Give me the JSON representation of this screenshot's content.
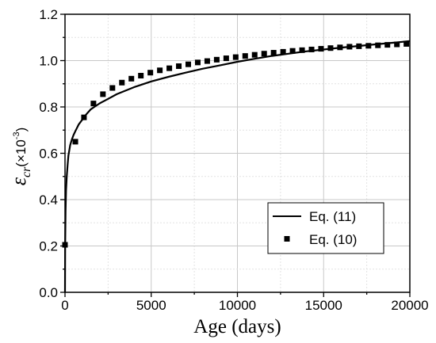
{
  "chart_data": {
    "type": "line",
    "xlabel": "Age (days)",
    "ylabel": {
      "symbol": "ε",
      "subscript": "cr",
      "unit_open": "(×10",
      "unit_exp": "-3",
      "unit_close": ")"
    },
    "xlim": [
      0,
      20000
    ],
    "ylim": [
      0.0,
      1.2
    ],
    "xticks": [
      0,
      5000,
      10000,
      15000,
      20000
    ],
    "yticks": [
      0.0,
      0.2,
      0.4,
      0.6,
      0.8,
      1.0,
      1.2
    ],
    "xtick_labels": [
      "0",
      "5000",
      "10000",
      "15000",
      "20000"
    ],
    "ytick_labels": [
      "0.0",
      "0.2",
      "0.4",
      "0.6",
      "0.8",
      "1.0",
      "1.2"
    ],
    "grid": true,
    "legend_position": "bottom-right",
    "series": [
      {
        "name": "Eq. (11)",
        "style": "line",
        "color": "#000000",
        "x": [
          0,
          10,
          30,
          60,
          100,
          150,
          200,
          300,
          400,
          500,
          600,
          800,
          1000,
          1200,
          1500,
          1700,
          2000,
          2500,
          3000,
          3500,
          4000,
          5000,
          6000,
          7000,
          8000,
          9000,
          10000,
          11000,
          12000,
          13000,
          14000,
          15000,
          16000,
          17000,
          18000,
          19000,
          20000
        ],
        "y": [
          0.0,
          0.2,
          0.35,
          0.44,
          0.5,
          0.55,
          0.59,
          0.635,
          0.66,
          0.68,
          0.695,
          0.725,
          0.745,
          0.765,
          0.79,
          0.8,
          0.815,
          0.835,
          0.855,
          0.87,
          0.885,
          0.91,
          0.93,
          0.948,
          0.965,
          0.98,
          0.995,
          1.008,
          1.02,
          1.03,
          1.04,
          1.048,
          1.056,
          1.063,
          1.07,
          1.077,
          1.084
        ]
      },
      {
        "name": "Eq. (10)",
        "style": "square-markers",
        "color": "#000000",
        "x": [
          0,
          600,
          1100,
          1650,
          2200,
          2750,
          3300,
          3850,
          4400,
          4950,
          5500,
          6050,
          6600,
          7150,
          7700,
          8250,
          8800,
          9350,
          9900,
          10450,
          11000,
          11550,
          12100,
          12650,
          13200,
          13750,
          14300,
          14850,
          15400,
          15950,
          16500,
          17050,
          17600,
          18150,
          18700,
          19250,
          19800
        ],
        "y": [
          0.205,
          0.65,
          0.755,
          0.815,
          0.855,
          0.882,
          0.905,
          0.922,
          0.935,
          0.948,
          0.958,
          0.967,
          0.976,
          0.984,
          0.992,
          0.998,
          1.004,
          1.01,
          1.015,
          1.02,
          1.025,
          1.03,
          1.034,
          1.038,
          1.042,
          1.045,
          1.048,
          1.051,
          1.054,
          1.057,
          1.06,
          1.062,
          1.064,
          1.066,
          1.068,
          1.07,
          1.072
        ]
      }
    ]
  }
}
